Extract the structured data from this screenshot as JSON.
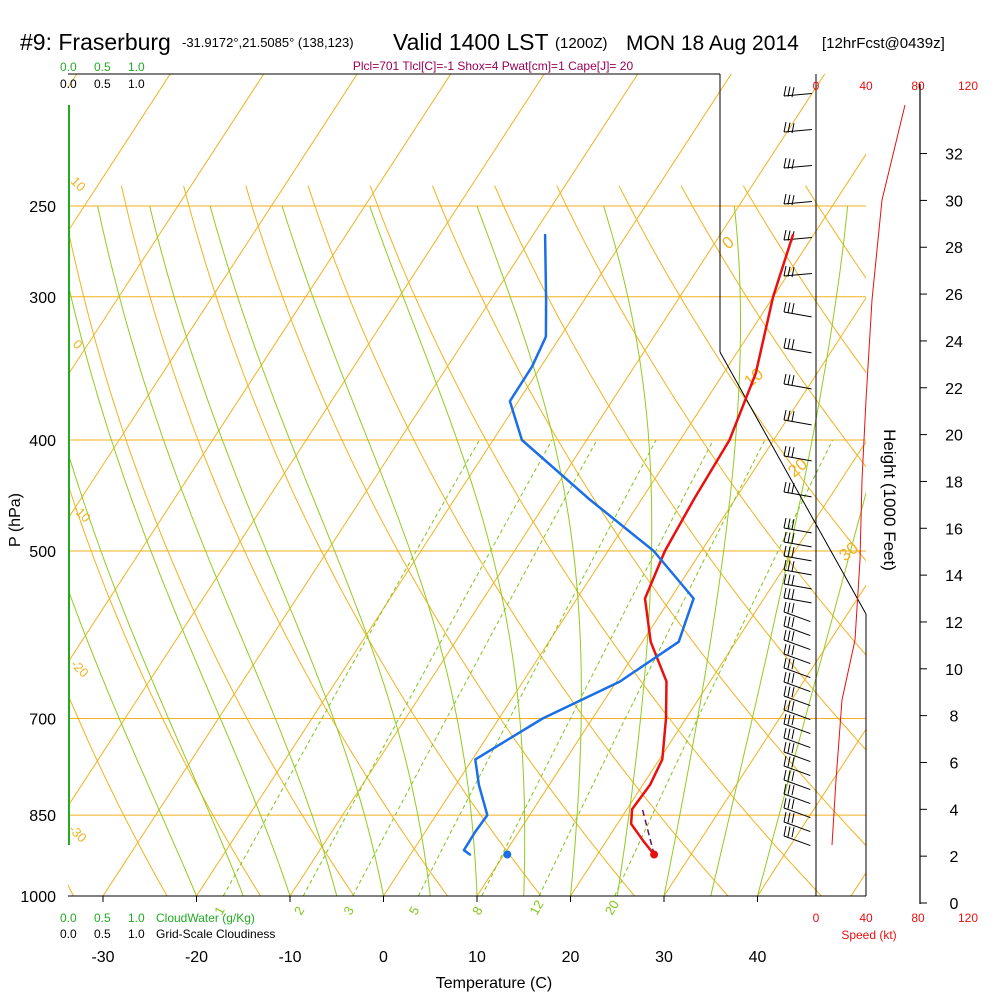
{
  "header": {
    "station": "#9: Fraserburg",
    "coords": "-31.9172°,21.5085° (138,123)",
    "valid_label": "Valid 1400 LST",
    "utc": "(1200Z)",
    "date": "MON 18 Aug 2014",
    "forecast": "[12hrFcst@0439z]"
  },
  "indices_text": "Plcl=701 Tlcl[C]=-1 Shox=4 Pwat[cm]=1 Cape[J]= 20",
  "scales": {
    "top_cloudwater_ticks": [
      "0.0",
      "0.5",
      "1.0"
    ],
    "top_cloudiness_ticks": [
      "0.0",
      "0.5",
      "1.0"
    ],
    "bottom_cloudwater_ticks": [
      "0.0",
      "0.5",
      "1.0"
    ],
    "bottom_cloudiness_ticks": [
      "0.0",
      "0.5",
      "1.0"
    ],
    "cloudwater_label": "CloudWater (g/Kg)",
    "cloudiness_label": "Grid-Scale Cloudiness",
    "speed_top_ticks": [
      "0",
      "40",
      "80",
      "120"
    ],
    "speed_bottom_ticks": [
      "0",
      "40",
      "80",
      "120"
    ],
    "speed_label": "Speed (kt)"
  },
  "colors": {
    "temperature": "#e8110f",
    "dewpoint": "#1a6fe8",
    "isobar_isotherm": "#f2b21f",
    "dry_adiabat": "#f2b21f",
    "moist_adiabat": "#8fcc1f",
    "mixing_ratio": "#7fc61a",
    "cloud": "#22aa22",
    "indices": "#990055",
    "speed": "#e8110f",
    "parcel": "#661166"
  },
  "chart_data": {
    "type": "line",
    "subtype": "skew-T log-P sounding",
    "xlabel": "Temperature (C)",
    "ylabel": "P (hPa)",
    "y2label": "Height (1000 Feet)",
    "pressure_ticks": [
      250,
      300,
      400,
      500,
      700,
      850,
      1000
    ],
    "temperature_ticks": [
      -30,
      -20,
      -10,
      0,
      10,
      20,
      30,
      40
    ],
    "height_ticks": [
      0,
      2,
      4,
      6,
      8,
      10,
      12,
      14,
      16,
      18,
      20,
      22,
      24,
      26,
      28,
      30,
      32
    ],
    "dry_adiabat_labels": [
      "-10",
      "0",
      "10",
      "20",
      "30"
    ],
    "isotherm_labels": [
      "10",
      "0",
      "-10",
      "-20",
      "-30"
    ],
    "mixing_ratio_labels": [
      "1",
      "2",
      "3",
      "5",
      "8",
      "12",
      "20"
    ],
    "series": [
      {
        "name": "Temperature",
        "points": [
          [
            25.5,
            920
          ],
          [
            23.2,
            895
          ],
          [
            20.5,
            865
          ],
          [
            19.4,
            840
          ],
          [
            19.3,
            800
          ],
          [
            18.5,
            760
          ],
          [
            15.5,
            700
          ],
          [
            12.5,
            650
          ],
          [
            7.5,
            600
          ],
          [
            3.3,
            550
          ],
          [
            1.5,
            500
          ],
          [
            0.3,
            450
          ],
          [
            -0.8,
            400
          ],
          [
            -3.5,
            350
          ],
          [
            -8.0,
            300
          ],
          [
            -11.0,
            265
          ]
        ]
      },
      {
        "name": "Dewpoint",
        "points": [
          [
            5.8,
            920
          ],
          [
            4.8,
            912
          ],
          [
            4.5,
            880
          ],
          [
            4.4,
            850
          ],
          [
            1.0,
            800
          ],
          [
            -1.5,
            760
          ],
          [
            2.3,
            700
          ],
          [
            7.5,
            650
          ],
          [
            10.5,
            600
          ],
          [
            8.5,
            550
          ],
          [
            0.3,
            500
          ],
          [
            -11.0,
            450
          ],
          [
            -23.0,
            400
          ],
          [
            -27.5,
            370
          ],
          [
            -28.0,
            345
          ],
          [
            -29.0,
            325
          ],
          [
            -32.0,
            302
          ],
          [
            -37.5,
            265
          ]
        ]
      }
    ],
    "surface_dewpoint_marker": [
      9.8,
      920
    ],
    "surface_temperature_marker": [
      25.5,
      920
    ]
  }
}
